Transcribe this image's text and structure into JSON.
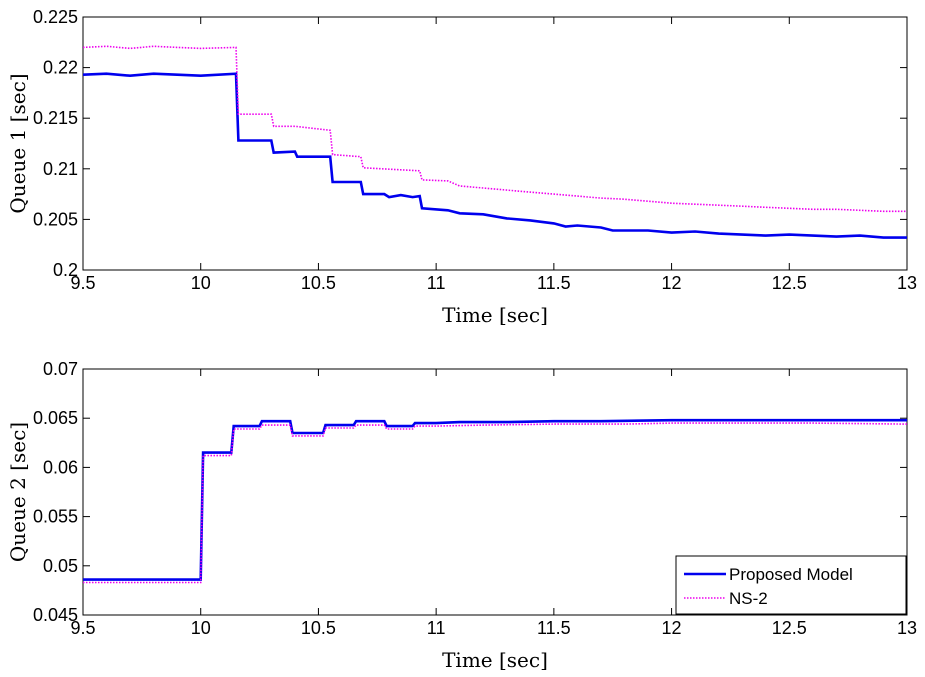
{
  "chart_data": [
    {
      "type": "line",
      "xlabel": "Time [sec]",
      "ylabel": "Queue 1 [sec]",
      "xlim": [
        9.5,
        13
      ],
      "ylim": [
        0.2,
        0.225
      ],
      "xticks": [
        "9.5",
        "10",
        "10.5",
        "11",
        "11.5",
        "12",
        "12.5",
        "13"
      ],
      "yticks": [
        "0.2",
        "0.205",
        "0.21",
        "0.215",
        "0.22",
        "0.225"
      ],
      "grid": false,
      "legend": null,
      "series": [
        {
          "name": "Proposed Model",
          "color": "#0000ee",
          "style": "solid",
          "points": [
            [
              9.5,
              0.2193
            ],
            [
              9.6,
              0.2194
            ],
            [
              9.7,
              0.2192
            ],
            [
              9.8,
              0.2194
            ],
            [
              9.9,
              0.2193
            ],
            [
              10.0,
              0.2192
            ],
            [
              10.15,
              0.2194
            ],
            [
              10.16,
              0.2128
            ],
            [
              10.3,
              0.2128
            ],
            [
              10.31,
              0.2116
            ],
            [
              10.4,
              0.2117
            ],
            [
              10.41,
              0.2112
            ],
            [
              10.55,
              0.2112
            ],
            [
              10.56,
              0.2087
            ],
            [
              10.68,
              0.2087
            ],
            [
              10.69,
              0.2075
            ],
            [
              10.78,
              0.2075
            ],
            [
              10.8,
              0.2072
            ],
            [
              10.85,
              0.2074
            ],
            [
              10.9,
              0.2072
            ],
            [
              10.93,
              0.2073
            ],
            [
              10.94,
              0.2061
            ],
            [
              11.05,
              0.2059
            ],
            [
              11.1,
              0.2056
            ],
            [
              11.2,
              0.2055
            ],
            [
              11.3,
              0.2051
            ],
            [
              11.4,
              0.2049
            ],
            [
              11.5,
              0.2046
            ],
            [
              11.55,
              0.2043
            ],
            [
              11.6,
              0.2044
            ],
            [
              11.7,
              0.2042
            ],
            [
              11.75,
              0.2039
            ],
            [
              11.9,
              0.2039
            ],
            [
              12.0,
              0.2037
            ],
            [
              12.1,
              0.2038
            ],
            [
              12.2,
              0.2036
            ],
            [
              12.3,
              0.2035
            ],
            [
              12.4,
              0.2034
            ],
            [
              12.5,
              0.2035
            ],
            [
              12.6,
              0.2034
            ],
            [
              12.7,
              0.2033
            ],
            [
              12.8,
              0.2034
            ],
            [
              12.9,
              0.2032
            ],
            [
              13.0,
              0.2032
            ]
          ]
        },
        {
          "name": "NS-2",
          "color": "#ee00ee",
          "style": "dotted",
          "points": [
            [
              9.5,
              0.222
            ],
            [
              9.6,
              0.2221
            ],
            [
              9.7,
              0.2219
            ],
            [
              9.8,
              0.2221
            ],
            [
              9.9,
              0.222
            ],
            [
              10.0,
              0.2219
            ],
            [
              10.15,
              0.222
            ],
            [
              10.16,
              0.2154
            ],
            [
              10.3,
              0.2154
            ],
            [
              10.31,
              0.2142
            ],
            [
              10.4,
              0.2142
            ],
            [
              10.55,
              0.2138
            ],
            [
              10.56,
              0.2114
            ],
            [
              10.68,
              0.2112
            ],
            [
              10.69,
              0.2101
            ],
            [
              10.85,
              0.2099
            ],
            [
              10.93,
              0.2098
            ],
            [
              10.94,
              0.2089
            ],
            [
              11.05,
              0.2088
            ],
            [
              11.1,
              0.2083
            ],
            [
              11.2,
              0.2081
            ],
            [
              11.3,
              0.2079
            ],
            [
              11.4,
              0.2077
            ],
            [
              11.5,
              0.2075
            ],
            [
              11.6,
              0.2073
            ],
            [
              11.7,
              0.2071
            ],
            [
              11.8,
              0.207
            ],
            [
              11.9,
              0.2068
            ],
            [
              12.0,
              0.2066
            ],
            [
              12.1,
              0.2065
            ],
            [
              12.2,
              0.2064
            ],
            [
              12.3,
              0.2063
            ],
            [
              12.4,
              0.2062
            ],
            [
              12.5,
              0.2061
            ],
            [
              12.6,
              0.206
            ],
            [
              12.7,
              0.206
            ],
            [
              12.8,
              0.2059
            ],
            [
              12.9,
              0.2058
            ],
            [
              13.0,
              0.2058
            ]
          ]
        }
      ]
    },
    {
      "type": "line",
      "xlabel": "Time [sec]",
      "ylabel": "Queue 2 [sec]",
      "xlim": [
        9.5,
        13
      ],
      "ylim": [
        0.045,
        0.07
      ],
      "xticks": [
        "9.5",
        "10",
        "10.5",
        "11",
        "11.5",
        "12",
        "12.5",
        "13"
      ],
      "yticks": [
        "0.045",
        "0.05",
        "0.055",
        "0.06",
        "0.065",
        "0.07"
      ],
      "grid": false,
      "legend": "bottom-right",
      "series": [
        {
          "name": "Proposed Model",
          "color": "#0000ee",
          "style": "solid",
          "points": [
            [
              9.5,
              0.0486
            ],
            [
              10.0,
              0.0486
            ],
            [
              10.01,
              0.0615
            ],
            [
              10.13,
              0.0615
            ],
            [
              10.14,
              0.0642
            ],
            [
              10.25,
              0.0642
            ],
            [
              10.26,
              0.0647
            ],
            [
              10.38,
              0.0647
            ],
            [
              10.39,
              0.0635
            ],
            [
              10.52,
              0.0635
            ],
            [
              10.53,
              0.0643
            ],
            [
              10.65,
              0.0643
            ],
            [
              10.66,
              0.0647
            ],
            [
              10.78,
              0.0647
            ],
            [
              10.79,
              0.0642
            ],
            [
              10.9,
              0.0642
            ],
            [
              10.91,
              0.0645
            ],
            [
              11.0,
              0.0645
            ],
            [
              11.1,
              0.0646
            ],
            [
              11.2,
              0.0646
            ],
            [
              11.3,
              0.0646
            ],
            [
              11.5,
              0.0647
            ],
            [
              11.7,
              0.0647
            ],
            [
              12.0,
              0.0648
            ],
            [
              12.3,
              0.0648
            ],
            [
              12.6,
              0.0648
            ],
            [
              13.0,
              0.0648
            ]
          ]
        },
        {
          "name": "NS-2",
          "color": "#ee00ee",
          "style": "dotted",
          "points": [
            [
              9.5,
              0.0483
            ],
            [
              10.0,
              0.0483
            ],
            [
              10.01,
              0.0612
            ],
            [
              10.13,
              0.0612
            ],
            [
              10.14,
              0.0639
            ],
            [
              10.25,
              0.0639
            ],
            [
              10.26,
              0.0643
            ],
            [
              10.38,
              0.0643
            ],
            [
              10.39,
              0.0632
            ],
            [
              10.52,
              0.0632
            ],
            [
              10.53,
              0.064
            ],
            [
              10.65,
              0.064
            ],
            [
              10.66,
              0.0643
            ],
            [
              10.78,
              0.0643
            ],
            [
              10.79,
              0.0639
            ],
            [
              10.9,
              0.0639
            ],
            [
              10.91,
              0.0642
            ],
            [
              11.0,
              0.0642
            ],
            [
              11.2,
              0.0643
            ],
            [
              11.5,
              0.0644
            ],
            [
              11.8,
              0.0644
            ],
            [
              12.0,
              0.0645
            ],
            [
              12.3,
              0.0645
            ],
            [
              12.6,
              0.0645
            ],
            [
              13.0,
              0.0644
            ]
          ]
        }
      ]
    }
  ]
}
